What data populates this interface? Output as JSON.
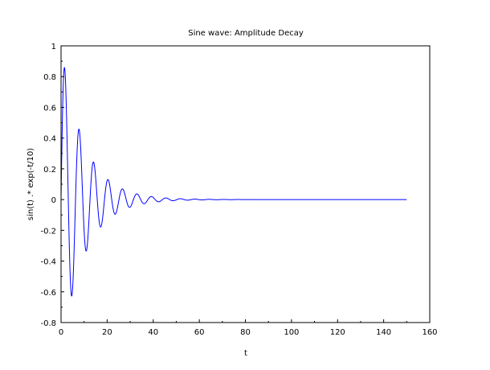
{
  "chart_data": {
    "type": "line",
    "title": "Sine wave: Amplitude Decay",
    "xlabel": "t",
    "ylabel": "sin(t) .* exp(-t/10)",
    "xlim": [
      0,
      160
    ],
    "ylim": [
      -0.8,
      1
    ],
    "xticks": [
      "0",
      "20",
      "40",
      "60",
      "80",
      "100",
      "120",
      "140",
      "160"
    ],
    "yticks": [
      "-0.8",
      "-0.6",
      "-0.4",
      "-0.2",
      "0",
      "0.2",
      "0.4",
      "0.6",
      "0.8",
      "1"
    ],
    "grid": false,
    "series": [
      {
        "formula": "sin(t) .* exp(-t/10)",
        "t_range": [
          0,
          150
        ],
        "color": "#0000ff"
      }
    ]
  }
}
